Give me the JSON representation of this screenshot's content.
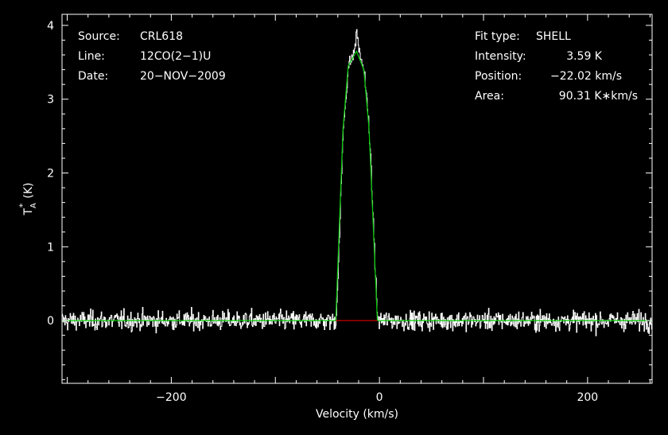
{
  "chart_data": {
    "type": "line",
    "xlabel": "Velocity (km/s)",
    "ylabel_main": "T",
    "ylabel_sup": "*",
    "ylabel_sub": "A",
    "ylabel_unit": "(K)",
    "xlim": [
      -305,
      262
    ],
    "ylim": [
      -0.85,
      4.15
    ],
    "x_ticks": [
      -200,
      0,
      200
    ],
    "x_tick_labels": [
      "−200",
      "0",
      "200"
    ],
    "y_ticks": [
      0,
      1,
      2,
      3,
      4
    ],
    "y_tick_labels": [
      "0",
      "1",
      "2",
      "3",
      "4"
    ],
    "grid": false,
    "noise_rms": 0.13,
    "series": [
      {
        "name": "",
        "color": "#ffffff",
        "style": "histogram",
        "description_points": {
          "x": [
            -305,
            -42,
            -40,
            -35,
            -30,
            -25,
            -22,
            -19,
            -15,
            -10,
            -6,
            -2,
            262
          ],
          "y": [
            0,
            0,
            0.6,
            2.6,
            3.45,
            3.6,
            3.9,
            3.6,
            3.4,
            2.6,
            1.3,
            0,
            0
          ]
        }
      },
      {
        "name": "",
        "color": "#00cc00",
        "style": "fit",
        "x": [
          -305,
          -42,
          -35,
          -30,
          -22,
          -15,
          -10,
          -2,
          262
        ],
        "y": [
          0,
          0,
          2.6,
          3.45,
          3.65,
          3.4,
          2.6,
          0,
          0
        ]
      },
      {
        "name": "",
        "color": "#cc0000",
        "style": "window",
        "x": [
          -42,
          -2
        ],
        "y": [
          0,
          0
        ]
      }
    ]
  },
  "info_left": [
    {
      "label": "Source:",
      "value": "CRL618"
    },
    {
      "label": "Line:",
      "value": "12CO(2−1)U"
    },
    {
      "label": "Date:",
      "value": "20−NOV−2009"
    }
  ],
  "info_right": [
    {
      "label": "Fit type:",
      "value": "SHELL"
    },
    {
      "label": "Intensity:",
      "value": "3.59 K"
    },
    {
      "label": "Position:",
      "value": "−22.02 km/s"
    },
    {
      "label": "Area:",
      "value": "90.31 K∗km/s"
    }
  ],
  "colors": {
    "background": "#000000",
    "foreground": "#ffffff",
    "fit": "#00cc00",
    "window": "#cc0000"
  }
}
